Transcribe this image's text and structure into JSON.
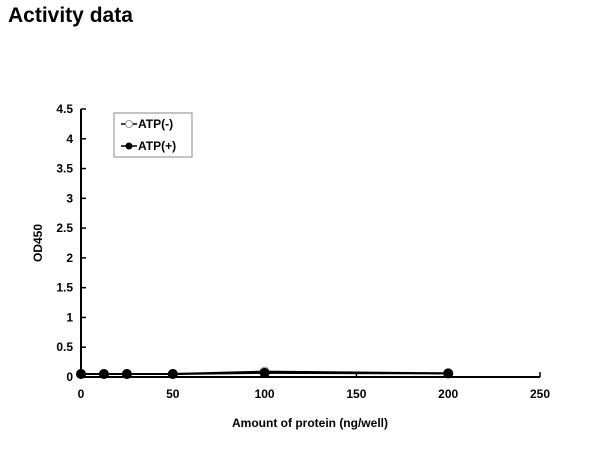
{
  "page_title": "Activity data",
  "chart_data": {
    "type": "line",
    "title": "Activity data",
    "xlabel": "Amount of protein (ng/well)",
    "ylabel": "OD450",
    "xlim": [
      0,
      250
    ],
    "ylim": [
      0,
      4.5
    ],
    "xticks": [
      "0",
      "50",
      "100",
      "150",
      "200",
      "250"
    ],
    "yticks": [
      "0",
      "0.5",
      "1",
      "1.5",
      "2",
      "2.5",
      "3",
      "3.5",
      "4",
      "4.5"
    ],
    "grid": false,
    "legend_position": "top-left",
    "x": [
      0,
      12.5,
      25,
      50,
      100,
      200
    ],
    "series": [
      {
        "name": "ATP(-)",
        "marker": "open-circle",
        "values": [
          0.05,
          0.05,
          0.05,
          0.05,
          0.09,
          0.06
        ]
      },
      {
        "name": "ATP(+)",
        "marker": "filled-circle",
        "values": [
          0.05,
          0.05,
          0.05,
          0.05,
          0.07,
          0.06
        ]
      }
    ]
  }
}
